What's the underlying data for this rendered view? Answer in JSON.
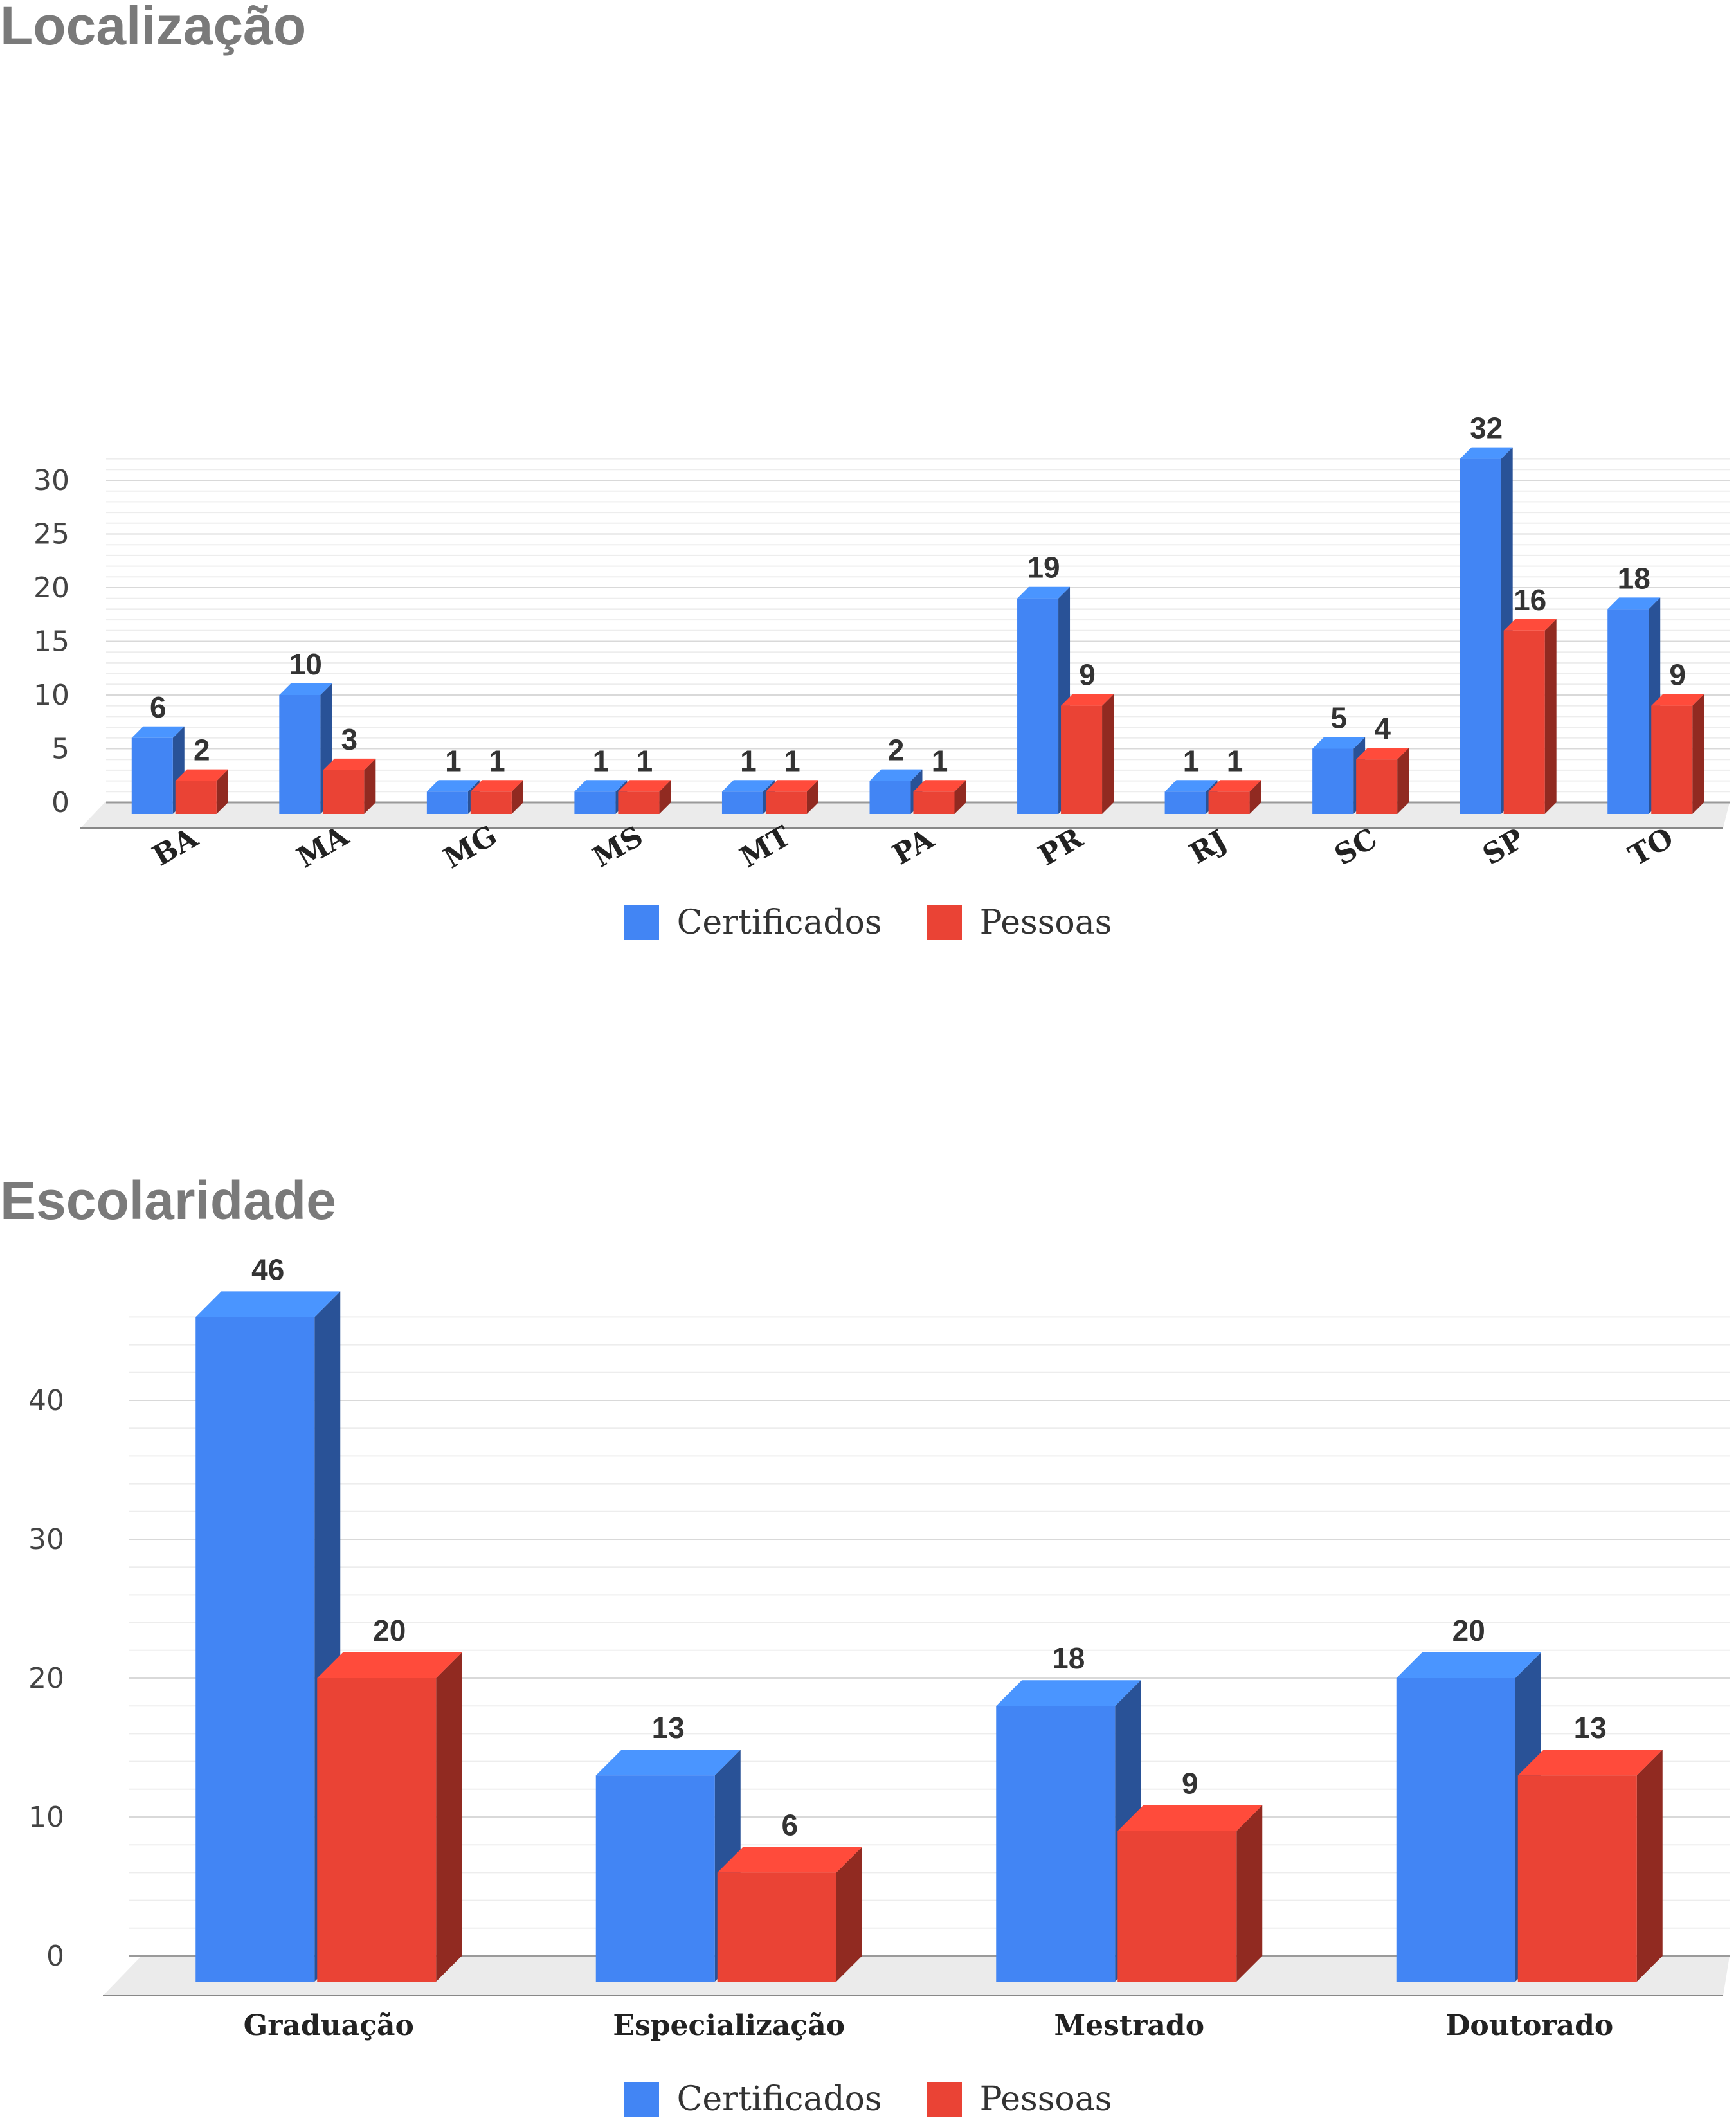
{
  "colors": {
    "certificados": "#4285f4",
    "pessoas": "#ea4335",
    "grid_major": "#d9d9d9",
    "grid_minor": "#ededed",
    "title": "#7a7a7a"
  },
  "chart_data": [
    {
      "id": "localizacao",
      "type": "bar",
      "title": "Localização",
      "categories": [
        "BA",
        "MA",
        "MG",
        "MS",
        "MT",
        "PA",
        "PR",
        "RJ",
        "SC",
        "SP",
        "TO"
      ],
      "series": [
        {
          "name": "Certificados",
          "values": [
            6,
            10,
            1,
            1,
            1,
            2,
            19,
            1,
            5,
            32,
            18
          ]
        },
        {
          "name": "Pessoas",
          "values": [
            2,
            3,
            1,
            1,
            1,
            1,
            9,
            1,
            4,
            16,
            9
          ]
        }
      ],
      "yticks": [
        "0",
        "5",
        "10",
        "15",
        "20",
        "25",
        "30"
      ],
      "ylim": [
        0,
        32
      ],
      "grid": true,
      "legend_position": "bottom",
      "style": "3d"
    },
    {
      "id": "escolaridade",
      "type": "bar",
      "title": "Escolaridade",
      "categories": [
        "Graduação",
        "Especialização",
        "Mestrado",
        "Doutorado"
      ],
      "series": [
        {
          "name": "Certificados",
          "values": [
            46,
            13,
            18,
            20
          ]
        },
        {
          "name": "Pessoas",
          "values": [
            20,
            6,
            9,
            13
          ]
        }
      ],
      "yticks": [
        "0",
        "10",
        "20",
        "30",
        "40"
      ],
      "ylim": [
        0,
        46
      ],
      "grid": true,
      "legend_position": "bottom",
      "style": "3d"
    }
  ]
}
